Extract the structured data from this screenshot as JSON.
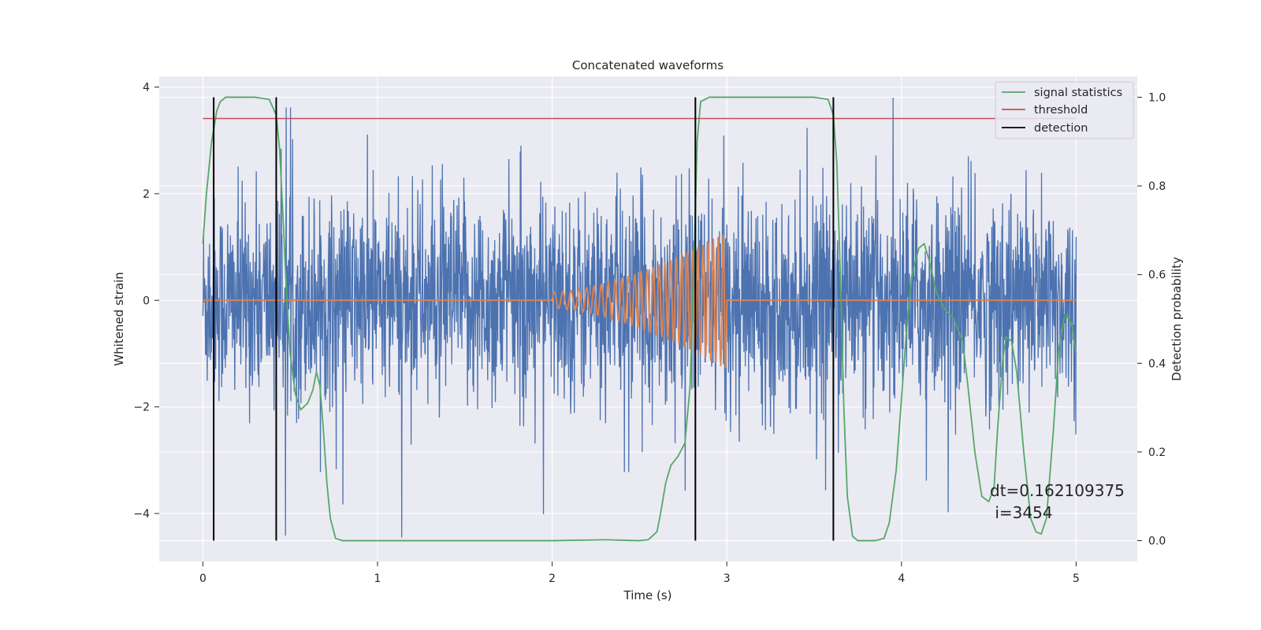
{
  "chart_data": {
    "type": "line",
    "title": "Concatenated waveforms",
    "xlabel": "Time (s)",
    "ylabel": "Whitened strain",
    "y2label": "Detection probability",
    "xlim": [
      -0.25,
      5.35
    ],
    "ylim": [
      -4.9,
      4.2
    ],
    "y2lim": [
      -0.047,
      1.047
    ],
    "x_ticks": [
      0,
      1,
      2,
      3,
      4,
      5
    ],
    "y_ticks": [
      -4,
      -2,
      0,
      2,
      4
    ],
    "y2_ticks": [
      0.0,
      0.2,
      0.4,
      0.6,
      0.8,
      1.0
    ],
    "x_tick_labels": [
      "0",
      "1",
      "2",
      "3",
      "4",
      "5"
    ],
    "y_tick_labels": [
      "−4",
      "−2",
      "0",
      "2",
      "4"
    ],
    "y2_tick_labels": [
      "0.0",
      "0.2",
      "0.4",
      "0.6",
      "0.8",
      "1.0"
    ],
    "grid": true,
    "legend_position": "top-right",
    "series": [
      {
        "key": "strain",
        "color": "#4c72b0",
        "axis": "left",
        "kind": "noise",
        "x_range": [
          0,
          5
        ],
        "amplitude_approx": 3.8
      },
      {
        "key": "injected_waveform",
        "color": "#dd8452",
        "axis": "left",
        "kind": "chirp",
        "start": 2.0,
        "end": 3.0,
        "amplitude_start": 0.15,
        "amplitude_end": 1.3,
        "x_range": [
          0,
          5
        ]
      },
      {
        "name": "signal statistics",
        "color": "#55a868",
        "axis": "right",
        "points": [
          [
            0.0,
            0.67
          ],
          [
            0.02,
            0.78
          ],
          [
            0.05,
            0.9
          ],
          [
            0.08,
            0.97
          ],
          [
            0.1,
            0.99
          ],
          [
            0.13,
            1.0
          ],
          [
            0.2,
            1.0
          ],
          [
            0.3,
            1.0
          ],
          [
            0.38,
            0.995
          ],
          [
            0.42,
            0.96
          ],
          [
            0.44,
            0.88
          ],
          [
            0.46,
            0.72
          ],
          [
            0.48,
            0.55
          ],
          [
            0.5,
            0.42
          ],
          [
            0.53,
            0.33
          ],
          [
            0.56,
            0.295
          ],
          [
            0.6,
            0.31
          ],
          [
            0.63,
            0.34
          ],
          [
            0.65,
            0.38
          ],
          [
            0.67,
            0.35
          ],
          [
            0.69,
            0.25
          ],
          [
            0.71,
            0.13
          ],
          [
            0.73,
            0.05
          ],
          [
            0.76,
            0.005
          ],
          [
            0.8,
            0.0
          ],
          [
            1.0,
            0.0
          ],
          [
            1.5,
            0.0
          ],
          [
            2.0,
            0.0
          ],
          [
            2.3,
            0.002
          ],
          [
            2.5,
            0.0
          ],
          [
            2.55,
            0.002
          ],
          [
            2.6,
            0.02
          ],
          [
            2.62,
            0.06
          ],
          [
            2.65,
            0.13
          ],
          [
            2.68,
            0.17
          ],
          [
            2.72,
            0.19
          ],
          [
            2.76,
            0.22
          ],
          [
            2.79,
            0.35
          ],
          [
            2.81,
            0.6
          ],
          [
            2.83,
            0.9
          ],
          [
            2.85,
            0.99
          ],
          [
            2.9,
            1.0
          ],
          [
            3.0,
            1.0
          ],
          [
            3.5,
            1.0
          ],
          [
            3.58,
            0.995
          ],
          [
            3.61,
            0.96
          ],
          [
            3.63,
            0.85
          ],
          [
            3.65,
            0.6
          ],
          [
            3.67,
            0.3
          ],
          [
            3.69,
            0.1
          ],
          [
            3.72,
            0.01
          ],
          [
            3.75,
            0.0
          ],
          [
            3.85,
            0.0
          ],
          [
            3.9,
            0.005
          ],
          [
            3.93,
            0.04
          ],
          [
            3.97,
            0.16
          ],
          [
            4.0,
            0.32
          ],
          [
            4.03,
            0.48
          ],
          [
            4.06,
            0.6
          ],
          [
            4.1,
            0.66
          ],
          [
            4.13,
            0.67
          ],
          [
            4.16,
            0.63
          ],
          [
            4.2,
            0.56
          ],
          [
            4.25,
            0.52
          ],
          [
            4.3,
            0.5
          ],
          [
            4.35,
            0.45
          ],
          [
            4.38,
            0.35
          ],
          [
            4.42,
            0.2
          ],
          [
            4.46,
            0.1
          ],
          [
            4.5,
            0.088
          ],
          [
            4.53,
            0.12
          ],
          [
            4.55,
            0.25
          ],
          [
            4.58,
            0.41
          ],
          [
            4.6,
            0.46
          ],
          [
            4.63,
            0.45
          ],
          [
            4.66,
            0.38
          ],
          [
            4.7,
            0.2
          ],
          [
            4.74,
            0.05
          ],
          [
            4.77,
            0.02
          ],
          [
            4.8,
            0.015
          ],
          [
            4.83,
            0.05
          ],
          [
            4.87,
            0.25
          ],
          [
            4.9,
            0.43
          ],
          [
            4.93,
            0.5
          ],
          [
            4.95,
            0.51
          ],
          [
            4.98,
            0.48
          ],
          [
            5.0,
            0.42
          ]
        ]
      },
      {
        "name": "threshold",
        "color": "#c44e52",
        "axis": "right",
        "x": [
          0,
          5
        ],
        "value": 0.952
      },
      {
        "name": "detection",
        "color": "#000000",
        "axis": "right",
        "x": [
          0.062,
          0.42,
          2.82,
          3.61
        ],
        "y_range": [
          0,
          1
        ]
      }
    ],
    "legend": [
      "signal statistics",
      "threshold",
      "detection"
    ],
    "annotations": [
      "dt=0.162109375",
      " i=3454"
    ],
    "background": "#eaeaf2",
    "grid_color": "#ffffff"
  }
}
